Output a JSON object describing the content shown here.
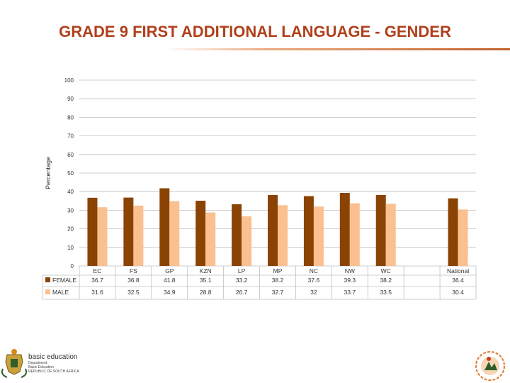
{
  "slide": {
    "title": "GRADE 9 FIRST ADDITIONAL LANGUAGE - GENDER",
    "footer": {
      "brand": "basic education",
      "line1": "Department:",
      "line2": "Basic Education",
      "line3": "REPUBLIC OF SOUTH AFRICA"
    }
  },
  "colors": {
    "title": "#b0401c",
    "female": "#8b4303",
    "male": "#fac090",
    "grid": "#bfbfbf"
  },
  "chart_data": {
    "type": "bar",
    "ylabel": "Percentage",
    "xlabel": "",
    "ylim": [
      0,
      100
    ],
    "yticks": [
      0,
      10,
      20,
      30,
      40,
      50,
      60,
      70,
      80,
      90,
      100
    ],
    "grid": true,
    "legend": "data-table",
    "categories": [
      "EC",
      "FS",
      "GP",
      "KZN",
      "LP",
      "MP",
      "NC",
      "NW",
      "WC",
      "",
      "National"
    ],
    "series": [
      {
        "name": "FEMALE",
        "values": [
          36.7,
          36.8,
          41.8,
          35.1,
          33.2,
          38.2,
          37.6,
          39.3,
          38.2,
          null,
          36.4
        ]
      },
      {
        "name": "MALE",
        "values": [
          31.6,
          32.5,
          34.9,
          28.8,
          26.7,
          32.7,
          32,
          33.7,
          33.5,
          null,
          30.4
        ]
      }
    ]
  }
}
